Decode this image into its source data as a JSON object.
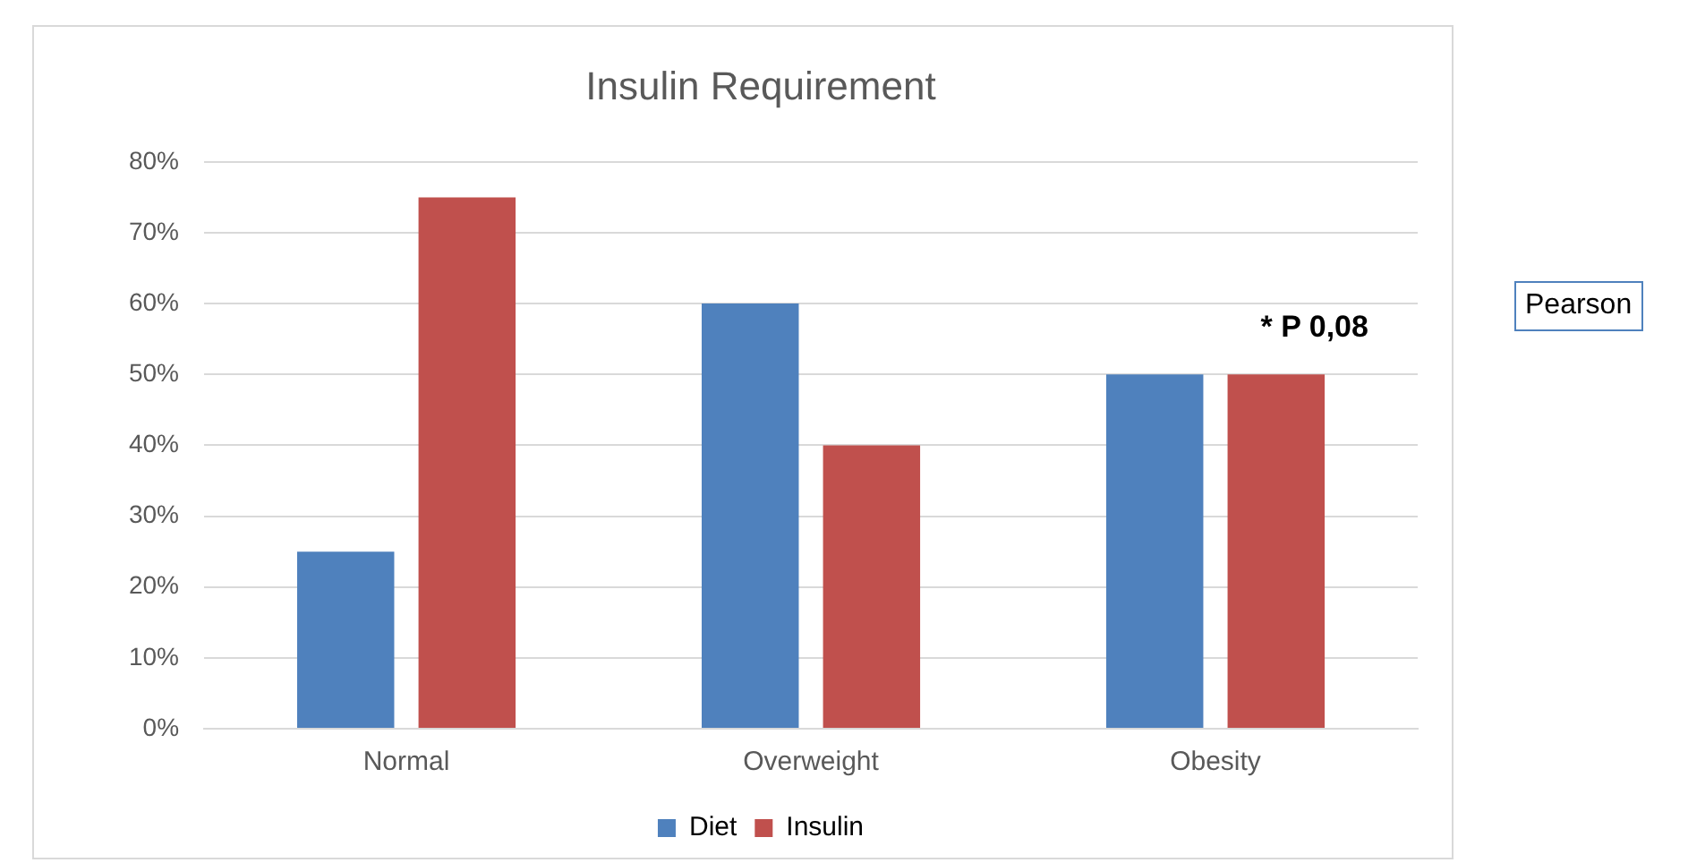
{
  "chart_data": {
    "type": "bar",
    "title": "Insulin Requirement",
    "categories": [
      "Normal",
      "Overweight",
      "Obesity"
    ],
    "series": [
      {
        "name": "Diet",
        "color": "#4f81bd",
        "values": [
          25,
          60,
          50
        ]
      },
      {
        "name": "Insulin",
        "color": "#c0504d",
        "values": [
          75,
          40,
          50
        ]
      }
    ],
    "ylim": [
      0,
      80
    ],
    "yticks": [
      {
        "value": 0,
        "label": "0%"
      },
      {
        "value": 10,
        "label": "10%"
      },
      {
        "value": 20,
        "label": "20%"
      },
      {
        "value": 30,
        "label": "30%"
      },
      {
        "value": 40,
        "label": "40%"
      },
      {
        "value": 50,
        "label": "50%"
      },
      {
        "value": 60,
        "label": "60%"
      },
      {
        "value": 70,
        "label": "70%"
      },
      {
        "value": 80,
        "label": "80%"
      }
    ],
    "grid": "y",
    "legend": "bottom",
    "annotations": [
      "* P 0,08",
      "Pearson"
    ]
  }
}
